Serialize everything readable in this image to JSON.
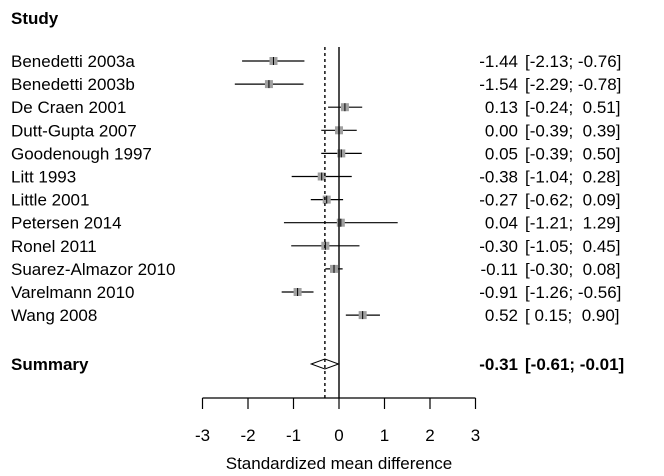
{
  "chart_data": {
    "type": "forest",
    "header": "Study",
    "xlabel": "Standardized mean difference",
    "xlim": [
      -3,
      3
    ],
    "xticks": [
      "-3",
      "-2",
      "-1",
      "0",
      "1",
      "2",
      "3"
    ],
    "null_line": 0,
    "summary_line": -0.31,
    "studies": [
      {
        "name": "Benedetti 2003a",
        "smd": -1.44,
        "lower": -2.13,
        "upper": -0.76,
        "smd_text": "-1.44",
        "ci_text": "[-2.13; -0.76]"
      },
      {
        "name": "Benedetti 2003b",
        "smd": -1.54,
        "lower": -2.29,
        "upper": -0.78,
        "smd_text": "-1.54",
        "ci_text": "[-2.29; -0.78]"
      },
      {
        "name": "De Craen 2001",
        "smd": 0.13,
        "lower": -0.24,
        "upper": 0.51,
        "smd_text": "0.13",
        "ci_text": "[-0.24;  0.51]"
      },
      {
        "name": "Dutt-Gupta 2007",
        "smd": 0.0,
        "lower": -0.39,
        "upper": 0.39,
        "smd_text": "0.00",
        "ci_text": "[-0.39;  0.39]"
      },
      {
        "name": "Goodenough 1997",
        "smd": 0.05,
        "lower": -0.39,
        "upper": 0.5,
        "smd_text": "0.05",
        "ci_text": "[-0.39;  0.50]"
      },
      {
        "name": "Litt 1993",
        "smd": -0.38,
        "lower": -1.04,
        "upper": 0.28,
        "smd_text": "-0.38",
        "ci_text": "[-1.04;  0.28]"
      },
      {
        "name": "Little 2001",
        "smd": -0.27,
        "lower": -0.62,
        "upper": 0.09,
        "smd_text": "-0.27",
        "ci_text": "[-0.62;  0.09]"
      },
      {
        "name": "Petersen 2014",
        "smd": 0.04,
        "lower": -1.21,
        "upper": 1.29,
        "smd_text": "0.04",
        "ci_text": "[-1.21;  1.29]"
      },
      {
        "name": "Ronel 2011",
        "smd": -0.3,
        "lower": -1.05,
        "upper": 0.45,
        "smd_text": "-0.30",
        "ci_text": "[-1.05;  0.45]"
      },
      {
        "name": "Suarez-Almazor 2010",
        "smd": -0.11,
        "lower": -0.3,
        "upper": 0.08,
        "smd_text": "-0.11",
        "ci_text": "[-0.30;  0.08]"
      },
      {
        "name": "Varelmann 2010",
        "smd": -0.91,
        "lower": -1.26,
        "upper": -0.56,
        "smd_text": "-0.91",
        "ci_text": "[-1.26; -0.56]"
      },
      {
        "name": "Wang 2008",
        "smd": 0.52,
        "lower": 0.15,
        "upper": 0.9,
        "smd_text": "0.52",
        "ci_text": "[ 0.15;  0.90]"
      }
    ],
    "summary": {
      "name": "Summary",
      "smd": -0.31,
      "lower": -0.61,
      "upper": -0.01,
      "smd_text": "-0.31",
      "ci_text": "[-0.61; -0.01]"
    },
    "colors": {
      "box": "#a0a0a0",
      "lines": "#000000",
      "diamond_fill": "#ffffff"
    }
  }
}
